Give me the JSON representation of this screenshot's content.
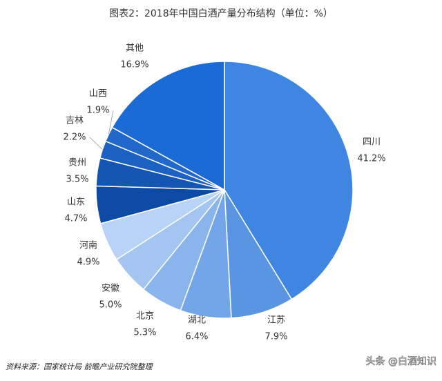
{
  "chart_data": {
    "type": "pie",
    "title": "图表2：2018年中国白酒产量分布结构（单位：%）",
    "categories": [
      "四川",
      "江苏",
      "湖北",
      "北京",
      "安徽",
      "河南",
      "山东",
      "贵州",
      "吉林",
      "山西",
      "其他"
    ],
    "values": [
      41.2,
      7.9,
      6.4,
      5.3,
      5.0,
      4.9,
      4.7,
      3.5,
      2.2,
      1.9,
      16.9
    ],
    "value_labels": [
      "41.2%",
      "7.9%",
      "6.4%",
      "5.3%",
      "5.0%",
      "4.9%",
      "4.7%",
      "3.5%",
      "2.2%",
      "1.9%",
      "16.9%"
    ],
    "colors": [
      "#3f86e3",
      "#5a95e2",
      "#72a6e8",
      "#8ab5ec",
      "#a3c5f0",
      "#b8d3f5",
      "#0d4aa3",
      "#1656b3",
      "#1d62c2",
      "#2268cb",
      "#1c6ad4"
    ],
    "source": "资料来源：国家统计局 前瞻产业研究院整理",
    "watermark": "头条 @白酒知识"
  }
}
